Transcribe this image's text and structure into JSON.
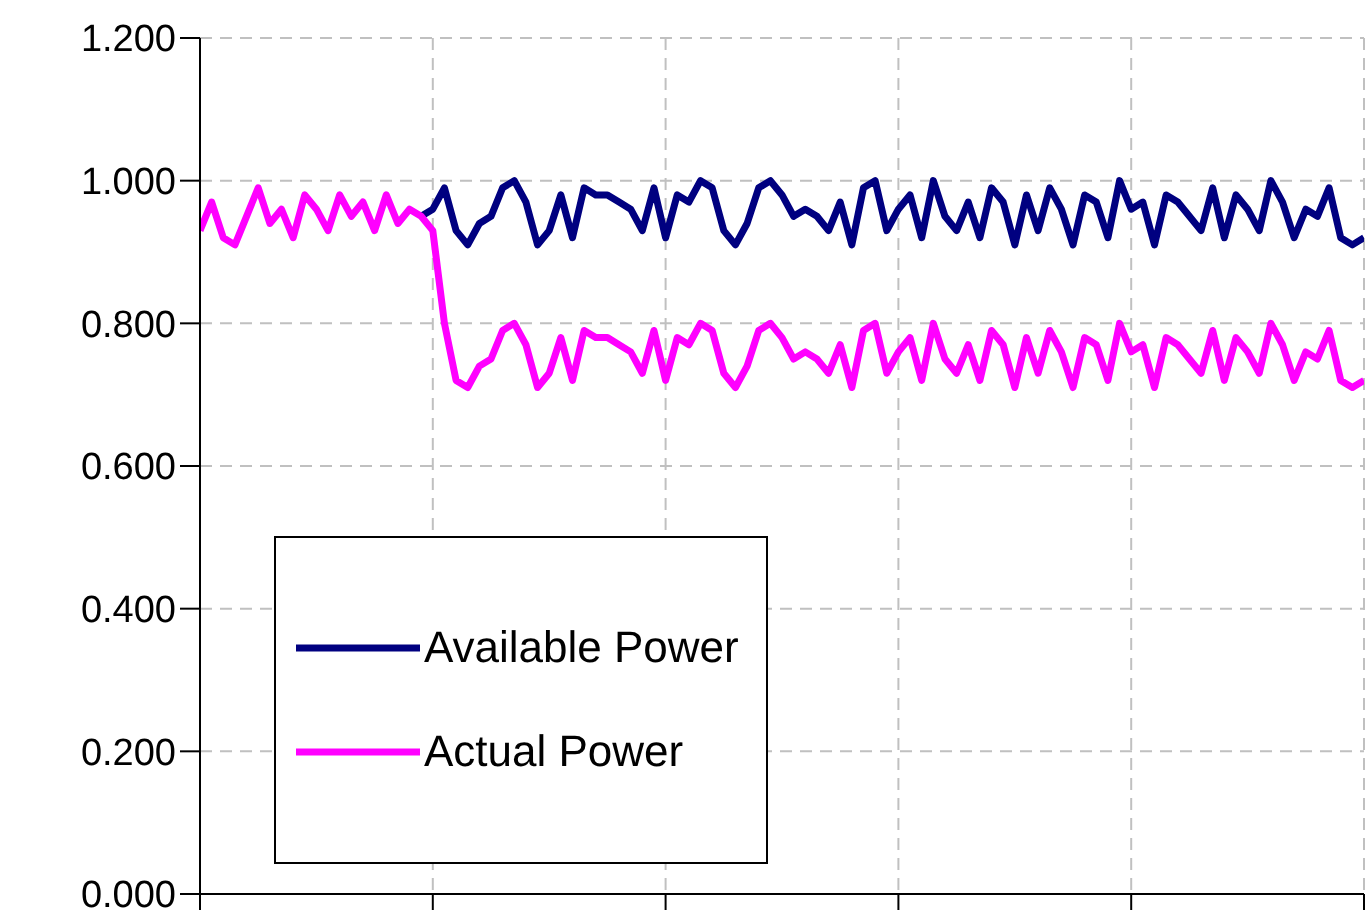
{
  "chart_data": {
    "type": "line",
    "categories": [
      null,
      null,
      null,
      null,
      null,
      null,
      null,
      null,
      null,
      null,
      null,
      null,
      null,
      null,
      null,
      null,
      null,
      null,
      null,
      null,
      null,
      null,
      null,
      null,
      null,
      null,
      null,
      null,
      null,
      null,
      null,
      null,
      null,
      null,
      null,
      null,
      null,
      null,
      null,
      null,
      null,
      null,
      null,
      null,
      null,
      null,
      null,
      null,
      null,
      null,
      null,
      null,
      null,
      null,
      null,
      null,
      null,
      null,
      null,
      null,
      null,
      null,
      null,
      null,
      null,
      null,
      null,
      null,
      null,
      null,
      null,
      null,
      null,
      null,
      null,
      null,
      null,
      null,
      null,
      null,
      null,
      null,
      null,
      null,
      null,
      null,
      null,
      null,
      null,
      null,
      null,
      null,
      null,
      null,
      null,
      null,
      null,
      null,
      null,
      null,
      null
    ],
    "series": [
      {
        "name": "Available Power",
        "color": "#000080",
        "values": [
          null,
          null,
          null,
          null,
          null,
          null,
          null,
          null,
          null,
          null,
          null,
          null,
          null,
          null,
          null,
          null,
          null,
          null,
          null,
          0.95,
          0.96,
          0.99,
          0.93,
          0.91,
          0.94,
          0.95,
          0.99,
          1.0,
          0.97,
          0.91,
          0.93,
          0.98,
          0.92,
          0.99,
          0.98,
          0.98,
          0.97,
          0.96,
          0.93,
          0.99,
          0.92,
          0.98,
          0.97,
          1.0,
          0.99,
          0.93,
          0.91,
          0.94,
          0.99,
          1.0,
          0.98,
          0.95,
          0.96,
          0.95,
          0.93,
          0.97,
          0.91,
          0.99,
          1.0,
          0.93,
          0.96,
          0.98,
          0.92,
          1.0,
          0.95,
          0.93,
          0.97,
          0.92,
          0.99,
          0.97,
          0.91,
          0.98,
          0.93,
          0.99,
          0.96,
          0.91,
          0.98,
          0.97,
          0.92,
          1.0,
          0.96,
          0.97,
          0.91,
          0.98,
          0.97,
          0.95,
          0.93,
          0.99,
          0.92,
          0.98,
          0.96,
          0.93,
          1.0,
          0.97,
          0.92,
          0.96,
          0.95,
          0.99,
          0.92,
          0.91,
          0.92
        ]
      },
      {
        "name": "Actual Power",
        "color": "#ff00ff",
        "values": [
          0.93,
          0.97,
          0.92,
          0.91,
          0.95,
          0.99,
          0.94,
          0.96,
          0.92,
          0.98,
          0.96,
          0.93,
          0.98,
          0.95,
          0.97,
          0.93,
          0.98,
          0.94,
          0.96,
          0.95,
          0.93,
          0.8,
          0.72,
          0.71,
          0.74,
          0.75,
          0.79,
          0.8,
          0.77,
          0.71,
          0.73,
          0.78,
          0.72,
          0.79,
          0.78,
          0.78,
          0.77,
          0.76,
          0.73,
          0.79,
          0.72,
          0.78,
          0.77,
          0.8,
          0.79,
          0.73,
          0.71,
          0.74,
          0.79,
          0.8,
          0.78,
          0.75,
          0.76,
          0.75,
          0.73,
          0.77,
          0.71,
          0.79,
          0.8,
          0.73,
          0.76,
          0.78,
          0.72,
          0.8,
          0.75,
          0.73,
          0.77,
          0.72,
          0.79,
          0.77,
          0.71,
          0.78,
          0.73,
          0.79,
          0.76,
          0.71,
          0.78,
          0.77,
          0.72,
          0.8,
          0.76,
          0.77,
          0.71,
          0.78,
          0.77,
          0.75,
          0.73,
          0.79,
          0.72,
          0.78,
          0.76,
          0.73,
          0.8,
          0.77,
          0.72,
          0.76,
          0.75,
          0.79,
          0.72,
          0.71,
          0.72
        ]
      }
    ],
    "ylim": [
      0,
      1.2
    ],
    "yticks": [
      {
        "value": 0,
        "label": "0.000"
      },
      {
        "value": 0.2,
        "label": "0.200"
      },
      {
        "value": 0.4,
        "label": "0.400"
      },
      {
        "value": 0.6,
        "label": "0.600"
      },
      {
        "value": 0.8,
        "label": "0.800"
      },
      {
        "value": 1,
        "label": "1.000"
      },
      {
        "value": 1.2,
        "label": "1.200"
      }
    ],
    "grid": true,
    "legend": "bottom left",
    "marker": "none",
    "line_style": "solid"
  }
}
